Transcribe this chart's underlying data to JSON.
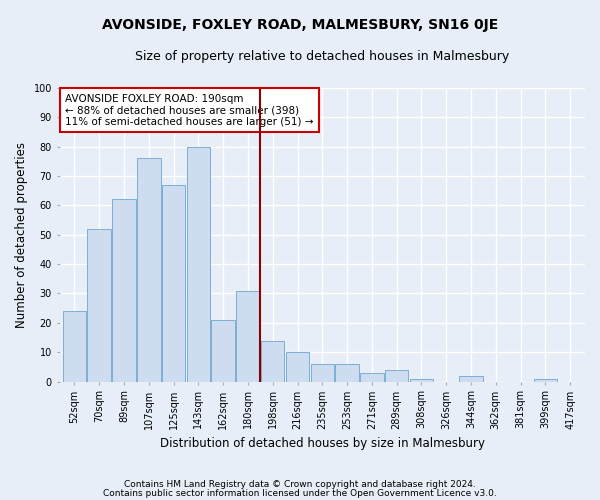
{
  "title": "AVONSIDE, FOXLEY ROAD, MALMESBURY, SN16 0JE",
  "subtitle": "Size of property relative to detached houses in Malmesbury",
  "xlabel": "Distribution of detached houses by size in Malmesbury",
  "ylabel": "Number of detached properties",
  "bar_color": "#cddcee",
  "bar_edge_color": "#7bafd4",
  "vline_color": "#8b0000",
  "vline_index": 7.5,
  "annotation_text": "AVONSIDE FOXLEY ROAD: 190sqm\n← 88% of detached houses are smaller (398)\n11% of semi-detached houses are larger (51) →",
  "annotation_box_color": "#ffffff",
  "annotation_box_edge": "#cc0000",
  "footer1": "Contains HM Land Registry data © Crown copyright and database right 2024.",
  "footer2": "Contains public sector information licensed under the Open Government Licence v3.0.",
  "background_color": "#e8eef7",
  "grid_color": "#ffffff",
  "categories": [
    "52sqm",
    "70sqm",
    "89sqm",
    "107sqm",
    "125sqm",
    "143sqm",
    "162sqm",
    "180sqm",
    "198sqm",
    "216sqm",
    "235sqm",
    "253sqm",
    "271sqm",
    "289sqm",
    "308sqm",
    "326sqm",
    "344sqm",
    "362sqm",
    "381sqm",
    "399sqm",
    "417sqm"
  ],
  "bar_heights": [
    24,
    52,
    62,
    76,
    67,
    80,
    21,
    31,
    14,
    10,
    6,
    6,
    3,
    4,
    1,
    0,
    2,
    0,
    0,
    1,
    0
  ],
  "ylim": [
    0,
    100
  ],
  "yticks": [
    0,
    10,
    20,
    30,
    40,
    50,
    60,
    70,
    80,
    90,
    100
  ],
  "title_fontsize": 10,
  "subtitle_fontsize": 9,
  "tick_fontsize": 7,
  "ylabel_fontsize": 8.5,
  "xlabel_fontsize": 8.5,
  "annotation_fontsize": 7.5,
  "footer_fontsize": 6.5
}
